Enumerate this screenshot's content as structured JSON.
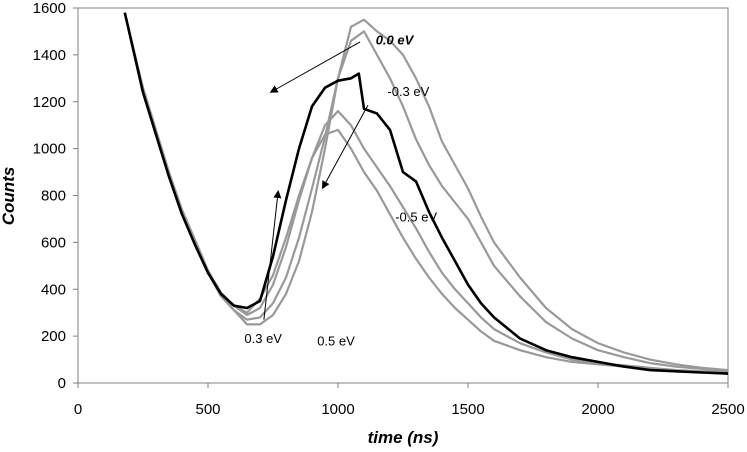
{
  "chart_data": {
    "type": "line",
    "title": "",
    "xlabel": "time (ns)",
    "ylabel": "Counts",
    "xlim": [
      0,
      2500
    ],
    "ylim": [
      0,
      1600
    ],
    "xticks": [
      0,
      500,
      1000,
      1500,
      2000,
      2500
    ],
    "yticks": [
      0,
      200,
      400,
      600,
      800,
      1000,
      1200,
      1400,
      1600
    ],
    "grid": false,
    "colors": {
      "highlight": "#000000",
      "other": "#999999",
      "arrow": "#000000"
    },
    "series": [
      {
        "name": "0.5 eV",
        "color": "#999999",
        "x": [
          180,
          250,
          300,
          350,
          400,
          450,
          500,
          550,
          600,
          650,
          700,
          750,
          800,
          850,
          900,
          950,
          1000,
          1050,
          1100,
          1150,
          1200,
          1250,
          1300,
          1350,
          1400,
          1450,
          1500,
          1550,
          1600,
          1700,
          1800,
          1900,
          2000,
          2100,
          2200,
          2300,
          2400,
          2500
        ],
        "y": [
          1580,
          1240,
          1060,
          880,
          720,
          600,
          470,
          380,
          330,
          300,
          360,
          460,
          620,
          800,
          960,
          1060,
          1080,
          1000,
          900,
          820,
          720,
          620,
          530,
          450,
          380,
          320,
          270,
          220,
          180,
          140,
          110,
          90,
          80,
          70,
          60,
          50,
          45,
          40
        ]
      },
      {
        "name": "0.3 eV",
        "color": "#999999",
        "x": [
          180,
          250,
          300,
          350,
          400,
          450,
          500,
          550,
          600,
          650,
          700,
          750,
          800,
          850,
          900,
          950,
          1000,
          1050,
          1100,
          1150,
          1200,
          1250,
          1300,
          1350,
          1400,
          1450,
          1500,
          1550,
          1600,
          1700,
          1800,
          1900,
          2000,
          2100,
          2200,
          2300,
          2400,
          2500
        ],
        "y": [
          1580,
          1250,
          1070,
          890,
          730,
          610,
          480,
          385,
          330,
          290,
          320,
          420,
          580,
          780,
          960,
          1100,
          1160,
          1100,
          1000,
          920,
          840,
          750,
          660,
          560,
          470,
          400,
          340,
          280,
          230,
          170,
          130,
          100,
          85,
          75,
          65,
          55,
          50,
          45
        ]
      },
      {
        "name": "0.0 eV",
        "color": "#000000",
        "x": [
          180,
          250,
          300,
          350,
          400,
          450,
          500,
          550,
          600,
          650,
          700,
          750,
          800,
          850,
          900,
          950,
          1000,
          1050,
          1080,
          1100,
          1150,
          1200,
          1250,
          1300,
          1350,
          1400,
          1450,
          1500,
          1550,
          1600,
          1700,
          1800,
          1900,
          2000,
          2100,
          2200,
          2300,
          2400,
          2500
        ],
        "y": [
          1580,
          1240,
          1060,
          880,
          720,
          590,
          470,
          380,
          330,
          320,
          350,
          540,
          780,
          1000,
          1180,
          1260,
          1290,
          1300,
          1320,
          1170,
          1150,
          1080,
          900,
          860,
          730,
          620,
          520,
          420,
          340,
          280,
          190,
          140,
          110,
          90,
          70,
          55,
          50,
          45,
          40
        ]
      },
      {
        "name": "-0.3 eV",
        "color": "#999999",
        "x": [
          180,
          250,
          300,
          350,
          400,
          450,
          500,
          550,
          600,
          650,
          700,
          750,
          800,
          850,
          900,
          950,
          1000,
          1050,
          1100,
          1150,
          1200,
          1250,
          1300,
          1350,
          1400,
          1450,
          1500,
          1550,
          1600,
          1700,
          1800,
          1900,
          2000,
          2100,
          2200,
          2300,
          2400,
          2500
        ],
        "y": [
          1580,
          1250,
          1070,
          890,
          730,
          600,
          470,
          370,
          310,
          270,
          280,
          340,
          450,
          620,
          830,
          1050,
          1300,
          1460,
          1500,
          1400,
          1300,
          1180,
          1040,
          930,
          840,
          770,
          700,
          600,
          500,
          370,
          260,
          190,
          140,
          110,
          85,
          70,
          60,
          50
        ]
      },
      {
        "name": "-0.5 eV",
        "color": "#999999",
        "x": [
          180,
          250,
          300,
          350,
          400,
          450,
          500,
          550,
          600,
          650,
          700,
          750,
          800,
          850,
          900,
          950,
          1000,
          1050,
          1100,
          1150,
          1200,
          1250,
          1300,
          1350,
          1400,
          1450,
          1500,
          1550,
          1600,
          1700,
          1800,
          1900,
          2000,
          2100,
          2200,
          2300,
          2400,
          2500
        ],
        "y": [
          1580,
          1260,
          1080,
          900,
          740,
          610,
          480,
          380,
          310,
          250,
          250,
          290,
          380,
          520,
          730,
          1000,
          1300,
          1520,
          1550,
          1500,
          1460,
          1400,
          1300,
          1180,
          1030,
          930,
          830,
          710,
          600,
          450,
          320,
          230,
          170,
          130,
          100,
          80,
          65,
          55
        ]
      }
    ],
    "annotations": [
      {
        "text": "0.0 eV",
        "emphasis": true,
        "label_at": [
          1145,
          1445
        ],
        "arrow_from": [
          1085,
          1455
        ],
        "arrow_to": [
          740,
          1240
        ]
      },
      {
        "text": "-0.3 eV",
        "emphasis": false,
        "label_at": [
          1190,
          1225
        ],
        "arrow_from": [
          1115,
          1185
        ],
        "arrow_to": [
          940,
          830
        ]
      },
      {
        "text": "-0.5 eV",
        "emphasis": false,
        "label_at": [
          1220,
          690
        ],
        "arrow_from": null,
        "arrow_to": null
      },
      {
        "text": "0.3 eV",
        "emphasis": false,
        "label_at": [
          640,
          170
        ],
        "arrow_from": [
          715,
          270
        ],
        "arrow_to": [
          770,
          820
        ]
      },
      {
        "text": "0.5 eV",
        "emphasis": false,
        "label_at": [
          920,
          160
        ],
        "arrow_from": null,
        "arrow_to": null
      }
    ]
  }
}
